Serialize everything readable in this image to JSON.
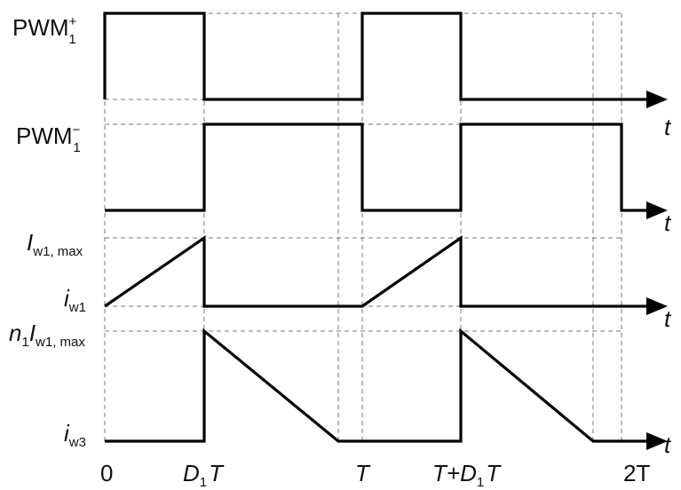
{
  "rows": [
    {
      "label_main": "PWM",
      "label_sub": "1",
      "label_sup": "+",
      "axis_label": "t",
      "segments": [
        {
          "from": 0,
          "to": "D1T",
          "level": "high"
        },
        {
          "from": "D1T",
          "to": "T",
          "level": "low"
        },
        {
          "from": "T",
          "to": "T+D1T",
          "level": "high"
        },
        {
          "from": "T+D1T",
          "to": "end",
          "level": "low"
        }
      ]
    },
    {
      "label_main": "PWM",
      "label_sub": "1",
      "label_sup": "−",
      "axis_label": "t",
      "segments": [
        {
          "from": 0,
          "to": "D1T",
          "level": "low"
        },
        {
          "from": "D1T",
          "to": "T",
          "level": "high"
        },
        {
          "from": "T",
          "to": "T+D1T",
          "level": "low"
        },
        {
          "from": "T+D1T",
          "to": "2T",
          "level": "high"
        }
      ]
    },
    {
      "label_top_main": "I",
      "label_top_sub": "w1, max",
      "label_base_main": "i",
      "label_base_sub": "w1",
      "axis_label": "t",
      "description": "ramps from 0 to I_w1,max over [0, D1T], zero until T, repeats"
    },
    {
      "label_top_prefix": "n",
      "label_top_prefix_sub": "1",
      "label_top_main": "I",
      "label_top_sub": "w1, max",
      "label_base_main": "i",
      "label_base_sub": "w3",
      "axis_label": "t",
      "description": "jumps to n1·I_w1,max at D1T, ramps down to 0 before T, repeats"
    }
  ],
  "time_axis": {
    "zero": "0",
    "d1t": {
      "main": "D",
      "sub": "1",
      "tail": "T"
    },
    "t": "T",
    "t_plus_d1t": {
      "head": "T+D",
      "sub": "1",
      "tail": "T"
    },
    "two_t": "2T"
  }
}
